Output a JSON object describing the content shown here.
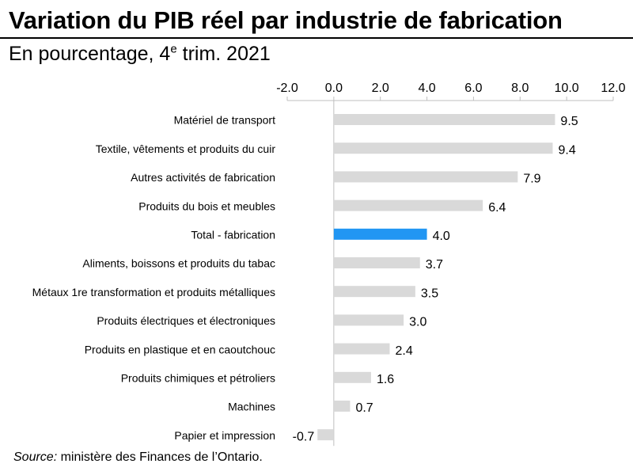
{
  "header": {
    "title": "Variation du PIB réel par industrie de fabrication",
    "subtitle_main": "En pourcentage, 4",
    "subtitle_sup": "e",
    "subtitle_rest": " trim. 2021"
  },
  "footer": {
    "source_label": "Source:",
    "source_text": "  ministère des Finances de l’Ontario."
  },
  "colors": {
    "bar_default": "#d9d9d9",
    "bar_highlight": "#2196f3",
    "axis": "#bfbfbf",
    "text": "#000000"
  },
  "chart_data": {
    "type": "bar",
    "orientation": "horizontal",
    "categories": [
      "Matériel de transport",
      "Textile, vêtements et produits du cuir",
      "Autres activités de fabrication",
      "Produits du bois et meubles",
      "Total - fabrication",
      "Aliments, boissons et produits du tabac",
      "Métaux 1re transformation et produits métalliques",
      "Produits électriques et électroniques",
      "Produits en plastique et en caoutchouc",
      "Produits chimiques et pétroliers",
      "Machines",
      "Papier et impression"
    ],
    "values": [
      9.5,
      9.4,
      7.9,
      6.4,
      4.0,
      3.7,
      3.5,
      3.0,
      2.4,
      1.6,
      0.7,
      -0.7
    ],
    "value_labels": [
      "9.5",
      "9.4",
      "7.9",
      "6.4",
      "4.0",
      "3.7",
      "3.5",
      "3.0",
      "2.4",
      "1.6",
      "0.7",
      "-0.7"
    ],
    "highlight_category": "Total - fabrication",
    "xlim": [
      -2.0,
      12.0
    ],
    "x_ticks": [
      -2.0,
      0.0,
      2.0,
      4.0,
      6.0,
      8.0,
      10.0,
      12.0
    ],
    "x_tick_labels": [
      "-2.0",
      "0.0",
      "2.0",
      "4.0",
      "6.0",
      "8.0",
      "10.0",
      "12.0"
    ],
    "axis_position": "top",
    "grid": false,
    "legend": "none"
  }
}
